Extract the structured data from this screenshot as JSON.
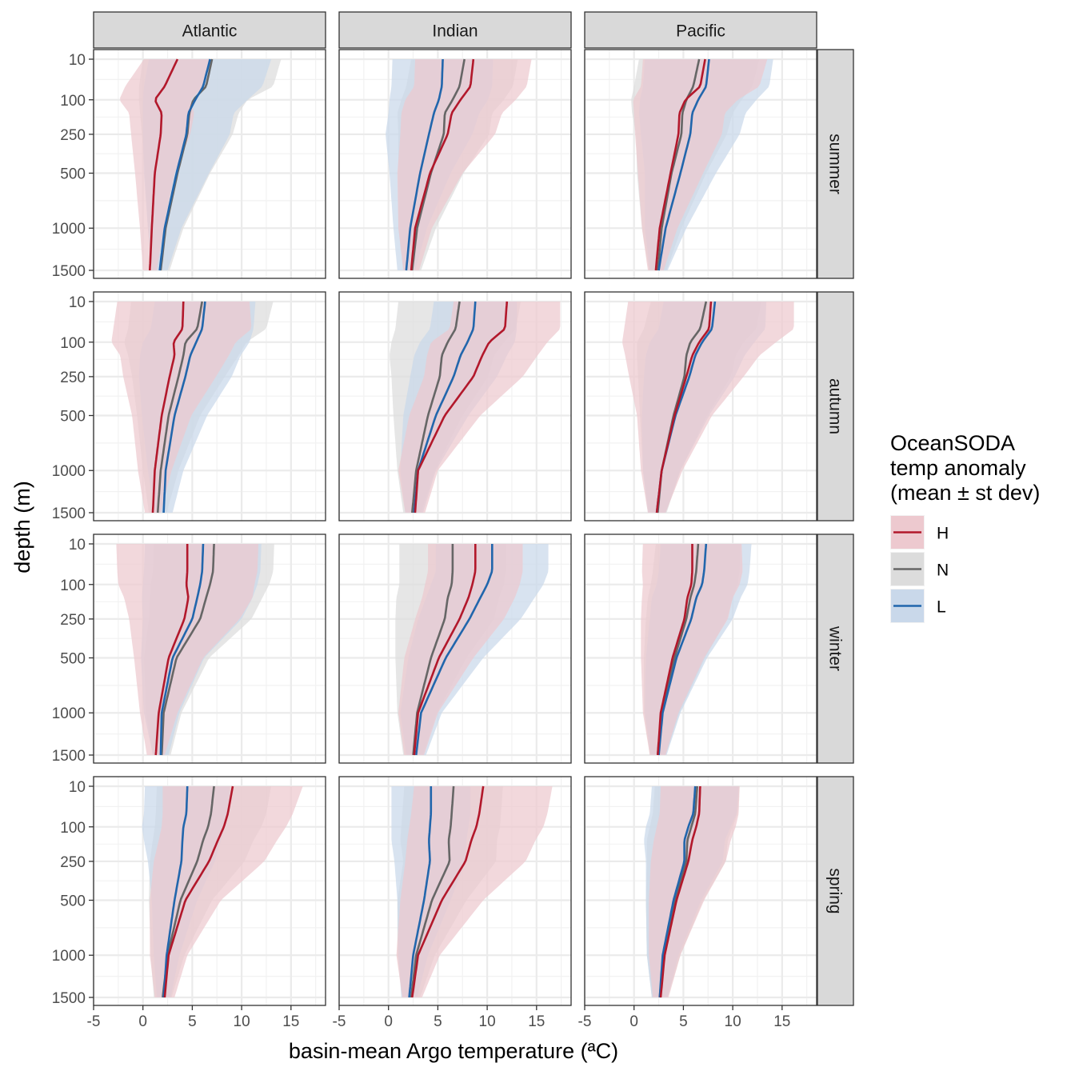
{
  "chart_data": {
    "type": "line",
    "subtype": "faceted vertical profiles with ribbons (mean ± st dev)",
    "xlabel": "basin-mean Argo temperature (ªC)",
    "ylabel": "depth (m)",
    "xlim": [
      -5,
      18.5
    ],
    "x_ticks": [
      -5,
      0,
      5,
      10,
      15
    ],
    "x_tick_labels": [
      "-5",
      "0",
      "5",
      "10",
      "15"
    ],
    "y_scale": "reversed square-root",
    "ylim": [
      0,
      1550
    ],
    "y_ticks": [
      10,
      100,
      250,
      500,
      1000,
      1500
    ],
    "y_tick_labels": [
      "10",
      "100",
      "250",
      "500",
      "1000",
      "1500"
    ],
    "facet_columns": [
      "Atlantic",
      "Indian",
      "Pacific"
    ],
    "facet_rows": [
      "summer",
      "autumn",
      "winter",
      "spring"
    ],
    "legend": {
      "title_lines": [
        "OceanSODA",
        "temp anomaly",
        "(mean ± st dev)"
      ],
      "position": "right",
      "items": [
        {
          "key": "H",
          "label": "H",
          "line_color": "#B2182B",
          "fill_color": "#EDC9CF"
        },
        {
          "key": "N",
          "label": "N",
          "line_color": "#666666",
          "fill_color": "#DCDCDC"
        },
        {
          "key": "L",
          "label": "L",
          "line_color": "#2166AC",
          "fill_color": "#C9D8EA"
        }
      ]
    },
    "depth_levels": [
      10,
      60,
      100,
      150,
      250,
      500,
      1000,
      1500
    ],
    "panels": [
      {
        "basin": "Atlantic",
        "season": "summer",
        "series": {
          "H": {
            "mean": [
              3.5,
              2.2,
              1.2,
              1.9,
              1.8,
              1.2,
              0.9,
              0.7
            ],
            "sd": [
              3.4,
              4.0,
              3.6,
              3.3,
              3.0,
              2.0,
              1.2,
              0.7
            ]
          },
          "N": {
            "mean": [
              7.0,
              6.4,
              5.1,
              4.7,
              4.5,
              3.5,
              2.3,
              1.8
            ],
            "sd": [
              7.0,
              6.8,
              5.5,
              5.0,
              4.6,
              3.3,
              1.8,
              0.9
            ]
          },
          "L": {
            "mean": [
              6.8,
              6.1,
              5.3,
              4.6,
              4.4,
              3.4,
              2.2,
              1.7
            ],
            "sd": [
              6.2,
              6.0,
              5.3,
              4.6,
              4.4,
              3.3,
              1.7,
              0.8
            ]
          }
        }
      },
      {
        "basin": "Indian",
        "season": "summer",
        "series": {
          "H": {
            "mean": [
              8.6,
              8.3,
              7.3,
              6.4,
              6.0,
              4.2,
              2.7,
              2.3
            ],
            "sd": [
              5.9,
              5.7,
              5.6,
              5.1,
              4.8,
              3.3,
              1.7,
              0.8
            ]
          },
          "N": {
            "mean": [
              7.7,
              7.2,
              6.5,
              5.7,
              5.6,
              4.3,
              2.9,
              2.4
            ],
            "sd": [
              5.4,
              5.4,
              5.2,
              4.8,
              4.6,
              3.3,
              1.9,
              0.9
            ]
          },
          "L": {
            "mean": [
              5.5,
              5.4,
              5.1,
              4.6,
              4.1,
              3.2,
              2.2,
              1.8
            ],
            "sd": [
              5.1,
              5.1,
              5.0,
              4.6,
              4.4,
              3.1,
              1.7,
              0.9
            ]
          }
        }
      },
      {
        "basin": "Pacific",
        "season": "summer",
        "series": {
          "H": {
            "mean": [
              7.2,
              6.7,
              5.2,
              4.6,
              4.5,
              3.7,
              2.6,
              2.2
            ],
            "sd": [
              6.3,
              6.0,
              5.3,
              4.6,
              4.4,
              3.3,
              1.8,
              0.8
            ]
          },
          "N": {
            "mean": [
              6.6,
              6.0,
              5.3,
              4.9,
              4.8,
              3.8,
              2.8,
              2.4
            ],
            "sd": [
              6.1,
              6.0,
              5.6,
              5.1,
              4.6,
              3.5,
              2.0,
              0.9
            ]
          },
          "L": {
            "mean": [
              7.6,
              7.3,
              6.5,
              5.9,
              5.7,
              4.7,
              3.2,
              2.5
            ],
            "sd": [
              6.5,
              6.4,
              5.9,
              5.4,
              5.0,
              3.6,
              2.1,
              0.9
            ]
          }
        }
      },
      {
        "basin": "Atlantic",
        "season": "autumn",
        "series": {
          "H": {
            "mean": [
              4.1,
              4.0,
              3.1,
              3.2,
              2.7,
              1.9,
              1.2,
              1.0
            ],
            "sd": [
              6.7,
              7.0,
              6.3,
              5.5,
              4.7,
              3.0,
              1.7,
              0.8
            ]
          },
          "N": {
            "mean": [
              6.0,
              5.5,
              4.3,
              4.1,
              3.6,
              2.6,
              1.8,
              1.5
            ],
            "sd": [
              7.2,
              7.0,
              6.2,
              5.6,
              4.7,
              3.2,
              1.8,
              0.9
            ]
          },
          "L": {
            "mean": [
              6.3,
              6.0,
              5.4,
              4.8,
              4.3,
              3.2,
              2.3,
              2.1
            ],
            "sd": [
              5.1,
              5.2,
              5.4,
              5.1,
              4.7,
              3.3,
              1.8,
              0.9
            ]
          }
        }
      },
      {
        "basin": "Indian",
        "season": "autumn",
        "series": {
          "H": {
            "mean": [
              12.0,
              11.8,
              10.2,
              9.5,
              8.6,
              5.7,
              3.0,
              2.7
            ],
            "sd": [
              5.4,
              5.6,
              5.9,
              5.6,
              5.0,
              3.6,
              2.0,
              1.0
            ]
          },
          "N": {
            "mean": [
              7.2,
              6.8,
              6.0,
              5.4,
              5.2,
              4.0,
              2.8,
              2.4
            ],
            "sd": [
              6.2,
              6.1,
              5.7,
              5.3,
              4.9,
              3.5,
              1.9,
              0.9
            ]
          },
          "L": {
            "mean": [
              8.8,
              8.6,
              8.0,
              7.3,
              6.6,
              4.8,
              3.0,
              2.6
            ],
            "sd": [
              4.2,
              4.4,
              4.8,
              4.7,
              4.4,
              3.3,
              1.8,
              0.9
            ]
          }
        }
      },
      {
        "basin": "Pacific",
        "season": "autumn",
        "series": {
          "H": {
            "mean": [
              7.8,
              7.6,
              6.6,
              5.9,
              5.3,
              4.1,
              2.8,
              2.3
            ],
            "sd": [
              8.4,
              8.6,
              7.8,
              6.8,
              5.8,
              3.8,
              2.1,
              0.9
            ]
          },
          "N": {
            "mean": [
              7.3,
              6.7,
              5.7,
              5.3,
              5.1,
              4.0,
              2.8,
              2.4
            ],
            "sd": [
              5.6,
              5.7,
              5.4,
              5.0,
              4.7,
              3.4,
              1.9,
              0.9
            ]
          },
          "L": {
            "mean": [
              8.2,
              7.9,
              6.9,
              6.2,
              5.6,
              4.2,
              2.8,
              2.3
            ],
            "sd": [
              5.2,
              5.4,
              5.3,
              5.0,
              4.6,
              3.4,
              1.9,
              0.9
            ]
          }
        }
      },
      {
        "basin": "Atlantic",
        "season": "winter",
        "series": {
          "H": {
            "mean": [
              4.5,
              4.5,
              4.4,
              4.6,
              4.2,
              2.6,
              1.6,
              1.3
            ],
            "sd": [
              7.2,
              7.1,
              6.9,
              6.5,
              5.6,
              3.5,
              1.9,
              0.9
            ]
          },
          "N": {
            "mean": [
              7.2,
              7.1,
              6.8,
              6.4,
              5.8,
              3.4,
              2.1,
              1.9
            ],
            "sd": [
              6.1,
              6.1,
              6.0,
              5.7,
              5.2,
              3.3,
              1.8,
              0.9
            ]
          },
          "L": {
            "mean": [
              6.1,
              6.0,
              5.8,
              5.5,
              5.0,
              3.0,
              1.9,
              1.8
            ],
            "sd": [
              5.9,
              5.9,
              5.8,
              5.6,
              5.0,
              3.2,
              1.8,
              0.8
            ]
          }
        }
      },
      {
        "basin": "Indian",
        "season": "winter",
        "series": {
          "H": {
            "mean": [
              8.8,
              8.8,
              8.5,
              8.1,
              7.2,
              5.1,
              3.0,
              2.6
            ],
            "sd": [
              4.8,
              4.8,
              4.8,
              4.7,
              4.5,
              3.5,
              2.0,
              1.0
            ]
          },
          "N": {
            "mean": [
              6.5,
              6.5,
              6.4,
              6.0,
              5.7,
              4.3,
              2.9,
              2.5
            ],
            "sd": [
              5.4,
              5.4,
              5.3,
              5.2,
              5.0,
              3.6,
              2.0,
              1.0
            ]
          },
          "L": {
            "mean": [
              10.5,
              10.5,
              10.0,
              9.3,
              8.2,
              5.8,
              3.3,
              2.8
            ],
            "sd": [
              5.7,
              5.7,
              5.7,
              5.5,
              5.2,
              3.8,
              2.1,
              1.0
            ]
          }
        }
      },
      {
        "basin": "Pacific",
        "season": "winter",
        "series": {
          "H": {
            "mean": [
              5.9,
              5.9,
              5.8,
              5.4,
              5.1,
              3.9,
              2.7,
              2.4
            ],
            "sd": [
              5.0,
              5.1,
              4.9,
              4.6,
              4.4,
              3.2,
              1.8,
              0.8
            ]
          },
          "N": {
            "mean": [
              6.5,
              6.3,
              6.1,
              5.7,
              5.3,
              4.1,
              2.8,
              2.4
            ],
            "sd": [
              4.3,
              4.4,
              4.4,
              4.3,
              4.1,
              3.1,
              1.8,
              0.8
            ]
          },
          "L": {
            "mean": [
              7.3,
              7.1,
              6.9,
              6.3,
              5.8,
              4.3,
              2.9,
              2.5
            ],
            "sd": [
              4.6,
              4.6,
              4.6,
              4.5,
              4.2,
              3.1,
              1.8,
              0.8
            ]
          }
        }
      },
      {
        "basin": "Atlantic",
        "season": "spring",
        "series": {
          "H": {
            "mean": [
              9.1,
              8.6,
              8.2,
              7.6,
              6.7,
              4.3,
              2.6,
              2.2
            ],
            "sd": [
              7.1,
              6.6,
              6.3,
              6.0,
              5.6,
              3.6,
              1.9,
              1.0
            ]
          },
          "N": {
            "mean": [
              7.2,
              6.9,
              6.6,
              6.1,
              5.5,
              3.8,
              2.5,
              2.0
            ],
            "sd": [
              5.8,
              5.6,
              5.4,
              5.1,
              4.8,
              3.2,
              1.7,
              0.9
            ]
          },
          "L": {
            "mean": [
              4.5,
              4.4,
              4.1,
              4.0,
              3.9,
              3.2,
              2.4,
              2.1
            ],
            "sd": [
              4.3,
              4.3,
              4.2,
              3.9,
              3.4,
              2.3,
              1.3,
              0.7
            ]
          }
        }
      },
      {
        "basin": "Indian",
        "season": "spring",
        "series": {
          "H": {
            "mean": [
              9.6,
              9.2,
              8.9,
              8.4,
              7.8,
              5.4,
              3.0,
              2.4
            ],
            "sd": [
              7.0,
              6.9,
              6.8,
              6.5,
              6.1,
              4.2,
              2.2,
              1.0
            ]
          },
          "N": {
            "mean": [
              6.6,
              6.4,
              6.3,
              6.1,
              6.2,
              4.4,
              2.8,
              2.3
            ],
            "sd": [
              5.0,
              5.0,
              5.0,
              4.9,
              4.7,
              3.5,
              1.9,
              0.9
            ]
          },
          "L": {
            "mean": [
              4.3,
              4.3,
              4.2,
              4.1,
              4.2,
              3.6,
              2.5,
              2.1
            ],
            "sd": [
              4.0,
              4.0,
              3.9,
              3.8,
              3.6,
              2.7,
              1.5,
              0.8
            ]
          }
        }
      },
      {
        "basin": "Pacific",
        "season": "spring",
        "series": {
          "H": {
            "mean": [
              6.7,
              6.6,
              6.3,
              5.9,
              5.5,
              4.3,
              3.1,
              2.7
            ],
            "sd": [
              4.0,
              4.0,
              4.0,
              3.9,
              3.8,
              2.8,
              1.6,
              0.8
            ]
          },
          "N": {
            "mean": [
              6.4,
              6.2,
              5.8,
              5.4,
              5.3,
              4.1,
              3.0,
              2.6
            ],
            "sd": [
              4.3,
              4.3,
              4.2,
              4.1,
              4.0,
              2.9,
              1.7,
              0.8
            ]
          },
          "L": {
            "mean": [
              6.2,
              6.0,
              5.5,
              5.1,
              5.1,
              4.0,
              2.9,
              2.6
            ],
            "sd": [
              4.4,
              4.4,
              4.3,
              4.1,
              3.9,
              2.8,
              1.6,
              0.8
            ]
          }
        }
      }
    ]
  }
}
